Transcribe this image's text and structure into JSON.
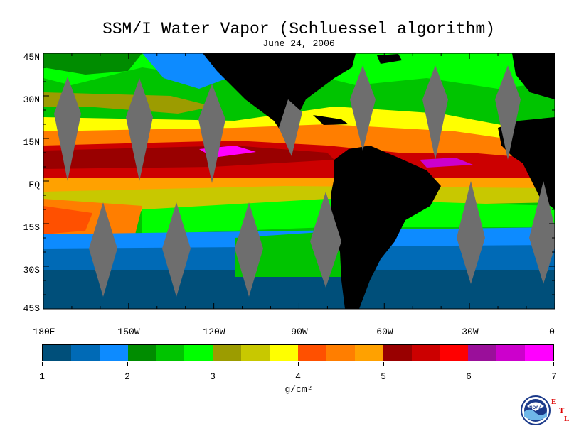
{
  "title": "SSM/I Water Vapor (Schluessel algorithm)",
  "date": "June 24, 2006",
  "map": {
    "lat_ticks": [
      "45N",
      "30N",
      "15N",
      "EQ",
      "15S",
      "30S",
      "45S"
    ],
    "lon_ticks": [
      "180E",
      "150W",
      "120W",
      "90W",
      "60W",
      "30W",
      "0"
    ],
    "land_color": "#000000",
    "no_data_color": "#6e6e6e"
  },
  "colorbar": {
    "colors": [
      "#004f7a",
      "#006ab6",
      "#0d8bff",
      "#008c00",
      "#00c400",
      "#00ff00",
      "#9c9c00",
      "#c8c800",
      "#ffff00",
      "#ff5000",
      "#ff7e00",
      "#ffa100",
      "#990000",
      "#cc0000",
      "#ff0000",
      "#9a0f9a",
      "#cc00cc",
      "#ff00ff"
    ],
    "labels": [
      "1",
      "2",
      "3",
      "4",
      "5",
      "6",
      "7"
    ],
    "unit": "g/cm²"
  },
  "logo": {
    "name": "NOAA",
    "etl_letters": [
      "E",
      "T",
      "L"
    ]
  }
}
